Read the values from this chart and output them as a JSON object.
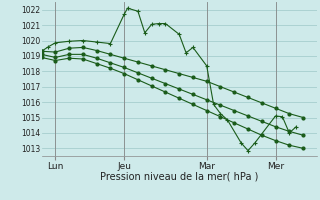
{
  "bg_color": "#ceeaea",
  "grid_color": "#9ec8c8",
  "line_color": "#1a5c1a",
  "xlabel": "Pression niveau de la mer( hPa )",
  "ylim": [
    1012.5,
    1022.5
  ],
  "yticks": [
    1013,
    1014,
    1015,
    1016,
    1017,
    1018,
    1019,
    1020,
    1021,
    1022
  ],
  "xlim": [
    0,
    8.4
  ],
  "day_labels": [
    "Lun",
    "Jeu",
    "Mar",
    "Mer"
  ],
  "day_positions": [
    0.42,
    2.52,
    5.04,
    7.14
  ],
  "series1_main": [
    [
      0.0,
      1019.3
    ],
    [
      0.21,
      1019.6
    ],
    [
      0.42,
      1019.85
    ],
    [
      0.84,
      1019.95
    ],
    [
      1.26,
      1020.0
    ],
    [
      1.68,
      1019.9
    ],
    [
      2.1,
      1019.8
    ],
    [
      2.52,
      1021.7
    ],
    [
      2.625,
      1022.1
    ],
    [
      2.94,
      1021.9
    ],
    [
      3.15,
      1020.5
    ],
    [
      3.36,
      1021.05
    ],
    [
      3.57,
      1021.1
    ],
    [
      3.78,
      1021.1
    ],
    [
      4.2,
      1020.4
    ],
    [
      4.41,
      1019.2
    ],
    [
      4.62,
      1019.55
    ],
    [
      5.04,
      1018.35
    ],
    [
      5.25,
      1015.85
    ],
    [
      5.46,
      1015.25
    ],
    [
      5.67,
      1014.85
    ],
    [
      6.09,
      1013.35
    ],
    [
      6.3,
      1012.85
    ],
    [
      6.51,
      1013.35
    ],
    [
      7.14,
      1015.1
    ],
    [
      7.35,
      1015.05
    ],
    [
      7.56,
      1014.0
    ],
    [
      7.77,
      1014.4
    ]
  ],
  "series2": [
    [
      0.0,
      1019.3
    ],
    [
      0.42,
      1019.25
    ],
    [
      0.84,
      1019.5
    ],
    [
      1.26,
      1019.55
    ],
    [
      1.68,
      1019.35
    ],
    [
      2.1,
      1019.1
    ],
    [
      2.52,
      1018.85
    ],
    [
      2.94,
      1018.6
    ],
    [
      3.36,
      1018.35
    ],
    [
      3.78,
      1018.1
    ],
    [
      4.2,
      1017.85
    ],
    [
      4.62,
      1017.6
    ],
    [
      5.04,
      1017.35
    ],
    [
      5.46,
      1017.0
    ],
    [
      5.88,
      1016.65
    ],
    [
      6.3,
      1016.3
    ],
    [
      6.72,
      1015.95
    ],
    [
      7.14,
      1015.6
    ],
    [
      7.56,
      1015.25
    ],
    [
      7.98,
      1015.0
    ]
  ],
  "series3": [
    [
      0.0,
      1019.1
    ],
    [
      0.42,
      1018.9
    ],
    [
      0.84,
      1019.1
    ],
    [
      1.26,
      1019.1
    ],
    [
      1.68,
      1018.85
    ],
    [
      2.1,
      1018.55
    ],
    [
      2.52,
      1018.25
    ],
    [
      2.94,
      1017.9
    ],
    [
      3.36,
      1017.55
    ],
    [
      3.78,
      1017.2
    ],
    [
      4.2,
      1016.85
    ],
    [
      4.62,
      1016.5
    ],
    [
      5.04,
      1016.15
    ],
    [
      5.46,
      1015.8
    ],
    [
      5.88,
      1015.45
    ],
    [
      6.3,
      1015.1
    ],
    [
      6.72,
      1014.75
    ],
    [
      7.14,
      1014.4
    ],
    [
      7.56,
      1014.1
    ],
    [
      7.98,
      1013.85
    ]
  ],
  "series4": [
    [
      0.0,
      1018.9
    ],
    [
      0.42,
      1018.7
    ],
    [
      0.84,
      1018.85
    ],
    [
      1.26,
      1018.8
    ],
    [
      1.68,
      1018.5
    ],
    [
      2.1,
      1018.2
    ],
    [
      2.52,
      1017.85
    ],
    [
      2.94,
      1017.45
    ],
    [
      3.36,
      1017.05
    ],
    [
      3.78,
      1016.65
    ],
    [
      4.2,
      1016.25
    ],
    [
      4.62,
      1015.85
    ],
    [
      5.04,
      1015.45
    ],
    [
      5.46,
      1015.05
    ],
    [
      5.88,
      1014.65
    ],
    [
      6.3,
      1014.25
    ],
    [
      6.72,
      1013.85
    ],
    [
      7.14,
      1013.5
    ],
    [
      7.56,
      1013.2
    ],
    [
      7.98,
      1013.0
    ]
  ]
}
